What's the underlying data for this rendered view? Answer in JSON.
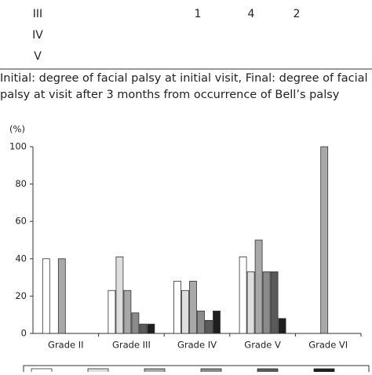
{
  "table": {
    "rows": [
      [
        "III",
        "1",
        "4",
        "2"
      ],
      [
        "IV"
      ],
      [
        "V"
      ]
    ]
  },
  "caption": [
    "Initial: degree of facial palsy at initial visit, Final: degree of facial",
    "palsy at visit after 3 months from occurrence of Bell’s palsy"
  ],
  "chart_data": {
    "type": "bar",
    "y_unit": "(%)",
    "categories": [
      "Grade II",
      "Grade III",
      "Grade IV",
      "Grade V",
      "Grade VI"
    ],
    "series": [
      {
        "color": "#ffffff",
        "values": [
          40,
          23,
          28,
          41,
          null
        ]
      },
      {
        "color": "#dedede",
        "values": [
          null,
          41,
          23,
          33,
          null
        ]
      },
      {
        "color": "#a8a8a8",
        "values": [
          40,
          23,
          28,
          50,
          100
        ]
      },
      {
        "color": "#8a8a8a",
        "values": [
          null,
          11,
          12,
          33,
          null
        ]
      },
      {
        "color": "#5a5a5a",
        "values": [
          null,
          5,
          7,
          33,
          null
        ]
      },
      {
        "color": "#1e1e1e",
        "values": [
          null,
          5,
          12,
          8,
          null
        ]
      }
    ],
    "ylim": [
      0,
      100
    ],
    "yticks": [
      0,
      20,
      40,
      60,
      80,
      100
    ]
  }
}
